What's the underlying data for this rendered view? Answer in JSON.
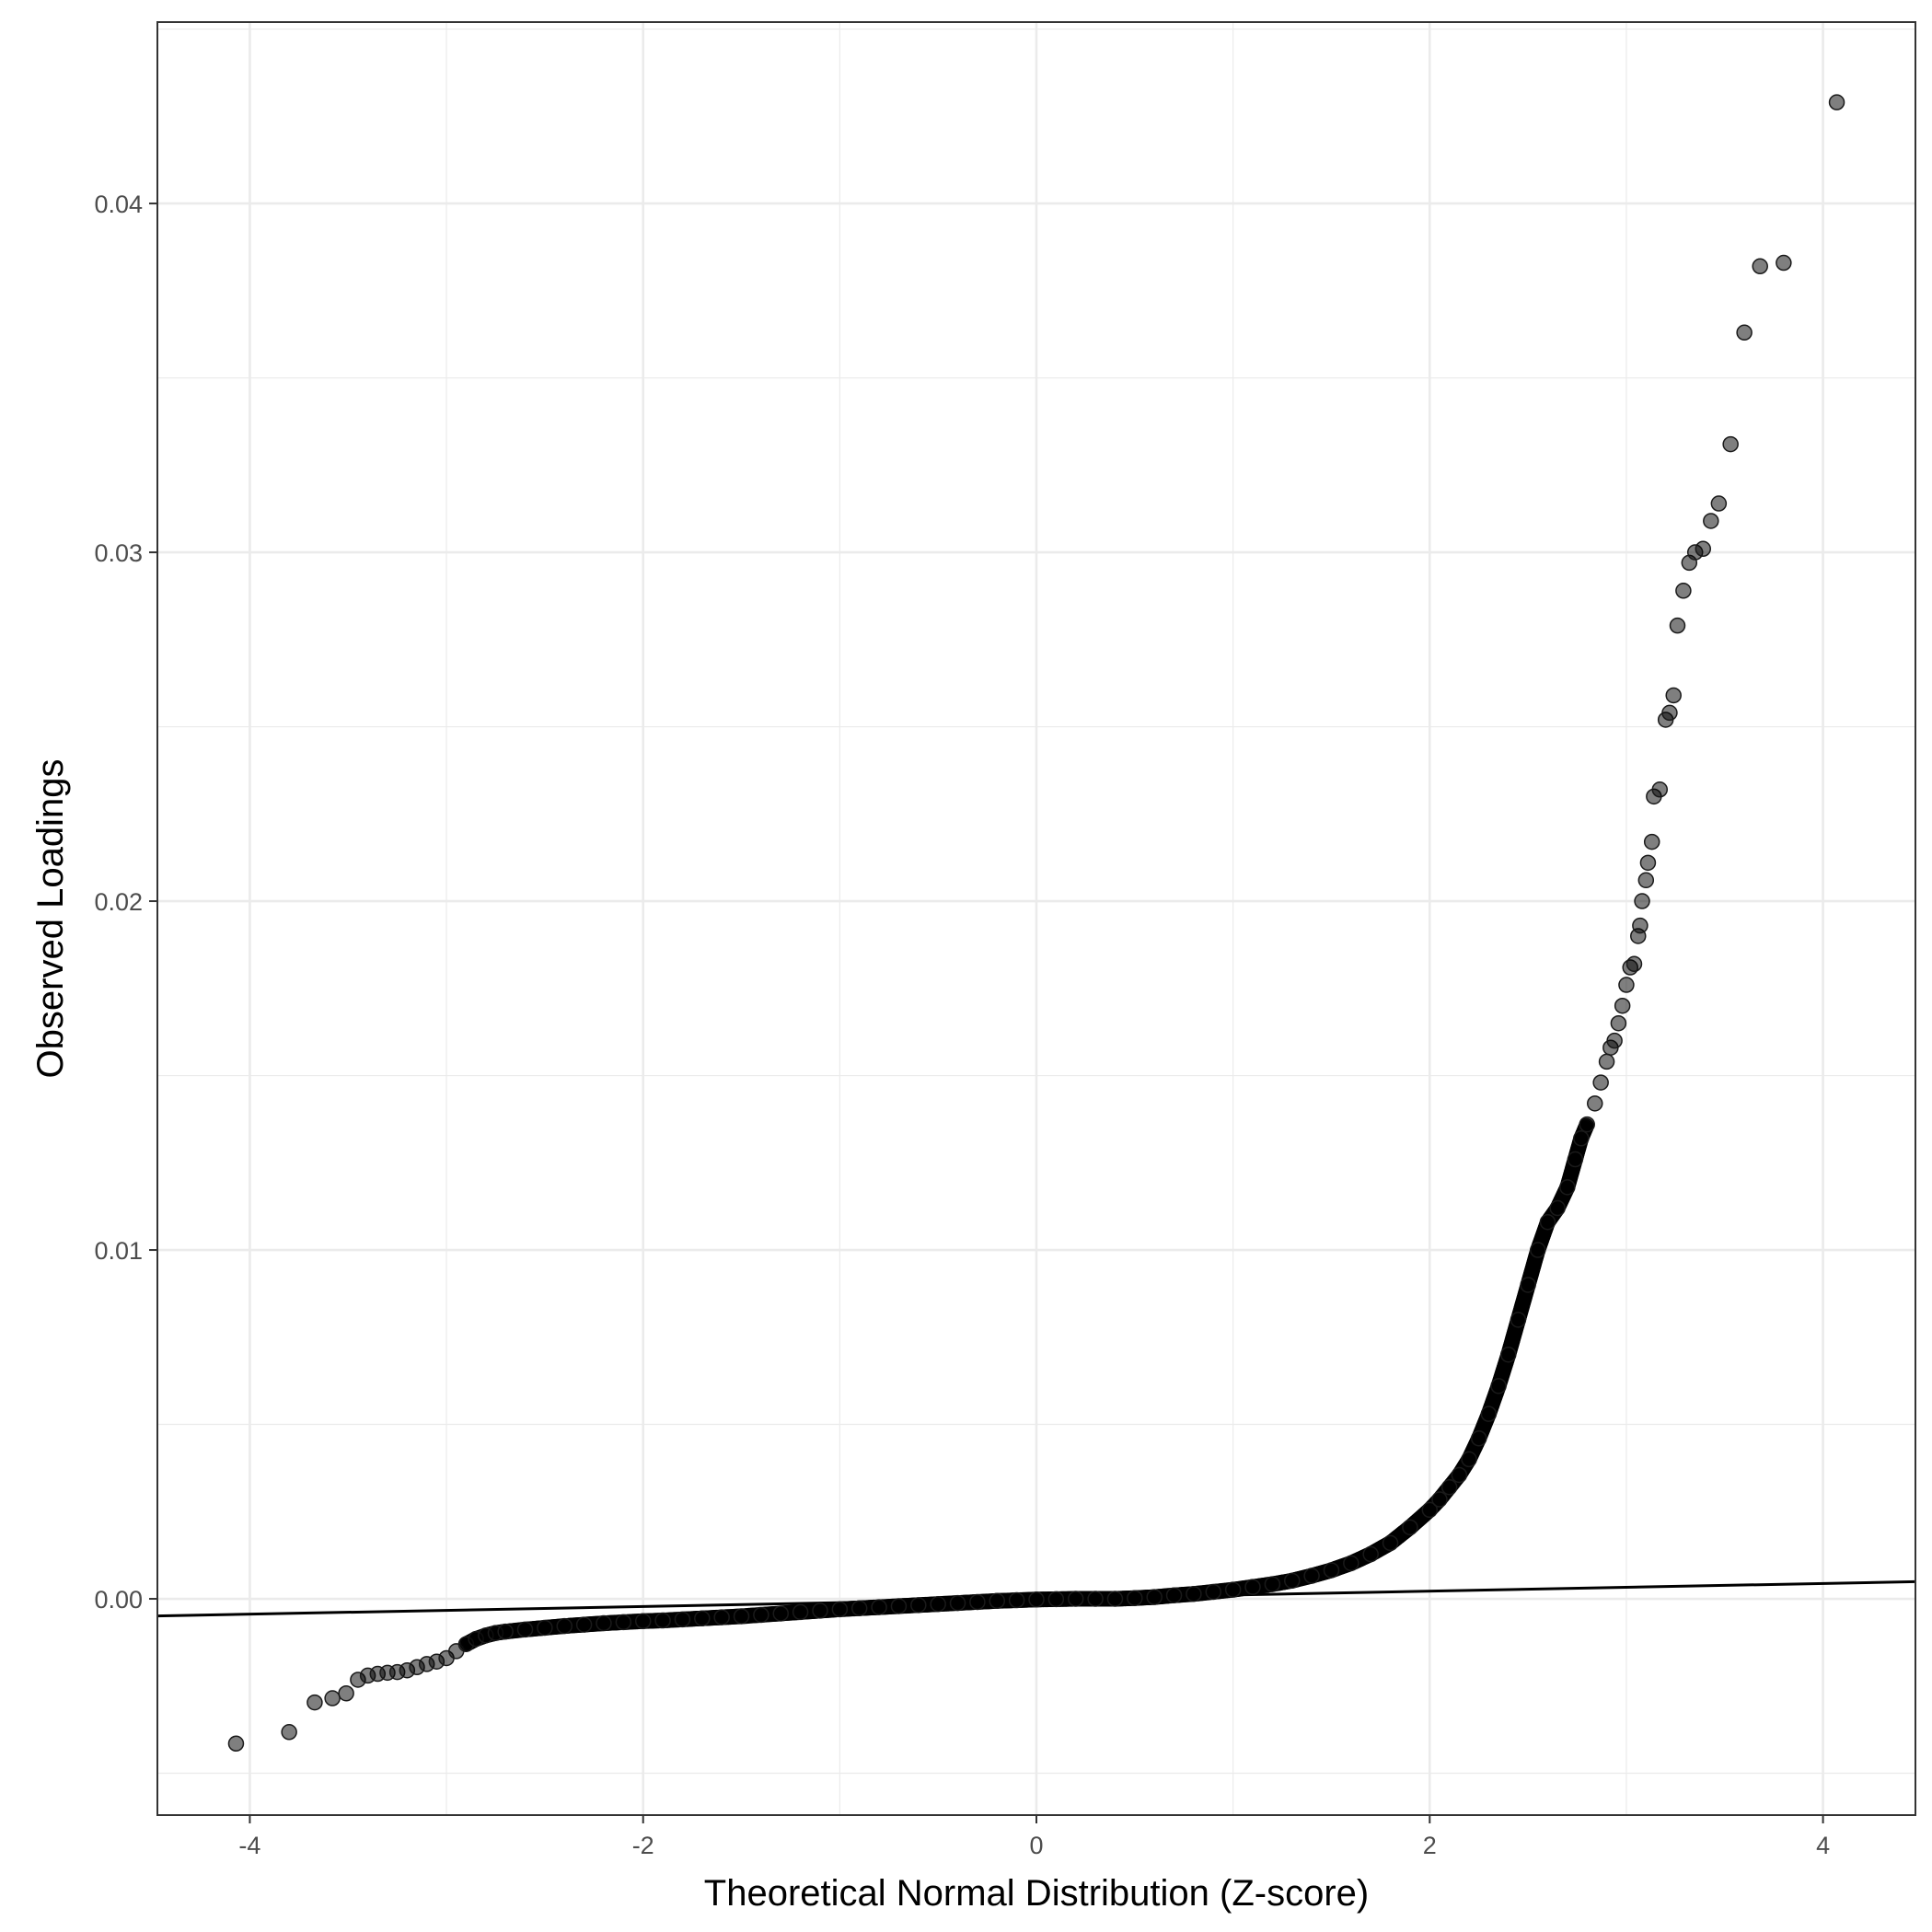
{
  "chart_data": {
    "type": "scatter",
    "xlabel": "Theoretical Normal Distribution (Z-score)",
    "ylabel": "Observed Loadings",
    "xlim": [
      -4.47,
      4.47
    ],
    "ylim": [
      -0.0062,
      0.0452
    ],
    "x_ticks": [
      -4,
      -2,
      0,
      2,
      4
    ],
    "x_tick_labels": [
      "-4",
      "-2",
      "0",
      "2",
      "4"
    ],
    "y_ticks": [
      0.0,
      0.01,
      0.02,
      0.03,
      0.04
    ],
    "y_tick_labels": [
      "0.00",
      "0.01",
      "0.02",
      "0.03",
      "0.04"
    ],
    "grid": true,
    "reference_line": {
      "slope": 0.00011,
      "intercept": 0.0
    },
    "points": [
      [
        -4.07,
        -0.00415
      ],
      [
        -3.8,
        -0.00382
      ],
      [
        -3.67,
        -0.00297
      ],
      [
        -3.58,
        -0.00285
      ],
      [
        -3.51,
        -0.00271
      ],
      [
        -3.45,
        -0.00232
      ],
      [
        -3.4,
        -0.0022
      ],
      [
        -3.35,
        -0.00215
      ],
      [
        -3.3,
        -0.00212
      ],
      [
        -3.25,
        -0.0021
      ],
      [
        -3.2,
        -0.00205
      ],
      [
        -3.15,
        -0.00196
      ],
      [
        -3.1,
        -0.00187
      ],
      [
        -3.05,
        -0.0018
      ],
      [
        -3.0,
        -0.0017
      ],
      [
        -2.95,
        -0.0015
      ],
      [
        -2.9,
        -0.0013
      ],
      [
        -2.85,
        -0.00115
      ],
      [
        -2.8,
        -0.00105
      ],
      [
        -2.75,
        -0.00098
      ],
      [
        -2.7,
        -0.00094
      ],
      [
        -2.6,
        -0.00088
      ],
      [
        -2.5,
        -0.00083
      ],
      [
        -2.4,
        -0.00078
      ],
      [
        -2.3,
        -0.00074
      ],
      [
        -2.2,
        -0.0007
      ],
      [
        -2.1,
        -0.00067
      ],
      [
        -2.0,
        -0.00064
      ],
      [
        -1.9,
        -0.00062
      ],
      [
        -1.8,
        -0.00059
      ],
      [
        -1.7,
        -0.00056
      ],
      [
        -1.6,
        -0.00053
      ],
      [
        -1.5,
        -0.0005
      ],
      [
        -1.4,
        -0.00046
      ],
      [
        -1.3,
        -0.00042
      ],
      [
        -1.2,
        -0.00038
      ],
      [
        -1.1,
        -0.00034
      ],
      [
        -1.0,
        -0.0003
      ],
      [
        -0.9,
        -0.00027
      ],
      [
        -0.8,
        -0.00024
      ],
      [
        -0.7,
        -0.00021
      ],
      [
        -0.6,
        -0.00018
      ],
      [
        -0.5,
        -0.00015
      ],
      [
        -0.4,
        -0.00012
      ],
      [
        -0.3,
        -9e-05
      ],
      [
        -0.2,
        -6e-05
      ],
      [
        -0.1,
        -4e-05
      ],
      [
        0.0,
        -2e-05
      ],
      [
        0.1,
        -1e-05
      ],
      [
        0.2,
        0.0
      ],
      [
        0.3,
        0.0
      ],
      [
        0.4,
        0.0
      ],
      [
        0.5,
        2e-05
      ],
      [
        0.6,
        5e-05
      ],
      [
        0.7,
        0.0001
      ],
      [
        0.8,
        0.00014
      ],
      [
        0.9,
        0.0002
      ],
      [
        1.0,
        0.00026
      ],
      [
        1.1,
        0.00034
      ],
      [
        1.2,
        0.00042
      ],
      [
        1.3,
        0.00052
      ],
      [
        1.4,
        0.00066
      ],
      [
        1.5,
        0.00082
      ],
      [
        1.6,
        0.00102
      ],
      [
        1.7,
        0.00128
      ],
      [
        1.8,
        0.0016
      ],
      [
        1.9,
        0.00205
      ],
      [
        2.0,
        0.00255
      ],
      [
        2.05,
        0.00285
      ],
      [
        2.1,
        0.0032
      ],
      [
        2.15,
        0.00355
      ],
      [
        2.2,
        0.004
      ],
      [
        2.25,
        0.0046
      ],
      [
        2.3,
        0.0053
      ],
      [
        2.35,
        0.0061
      ],
      [
        2.4,
        0.007
      ],
      [
        2.45,
        0.008
      ],
      [
        2.5,
        0.009
      ],
      [
        2.55,
        0.01
      ],
      [
        2.6,
        0.0108
      ],
      [
        2.65,
        0.0112
      ],
      [
        2.7,
        0.0118
      ],
      [
        2.74,
        0.0126
      ],
      [
        2.77,
        0.0132
      ],
      [
        2.8,
        0.0136
      ],
      [
        2.84,
        0.0142
      ],
      [
        2.87,
        0.0148
      ],
      [
        2.9,
        0.0154
      ],
      [
        2.92,
        0.0158
      ],
      [
        2.94,
        0.016
      ],
      [
        2.96,
        0.0165
      ],
      [
        2.98,
        0.017
      ],
      [
        3.0,
        0.0176
      ],
      [
        3.02,
        0.0181
      ],
      [
        3.04,
        0.0182
      ],
      [
        3.06,
        0.019
      ],
      [
        3.07,
        0.0193
      ],
      [
        3.08,
        0.02
      ],
      [
        3.1,
        0.0206
      ],
      [
        3.11,
        0.0211
      ],
      [
        3.13,
        0.0217
      ],
      [
        3.14,
        0.023
      ],
      [
        3.17,
        0.0232
      ],
      [
        3.2,
        0.0252
      ],
      [
        3.22,
        0.0254
      ],
      [
        3.24,
        0.0259
      ],
      [
        3.26,
        0.0279
      ],
      [
        3.29,
        0.0289
      ],
      [
        3.32,
        0.0297
      ],
      [
        3.35,
        0.03
      ],
      [
        3.39,
        0.0301
      ],
      [
        3.43,
        0.0309
      ],
      [
        3.47,
        0.0314
      ],
      [
        3.53,
        0.0331
      ],
      [
        3.6,
        0.0363
      ],
      [
        3.68,
        0.0382
      ],
      [
        3.8,
        0.0383
      ],
      [
        4.07,
        0.0429
      ]
    ]
  }
}
